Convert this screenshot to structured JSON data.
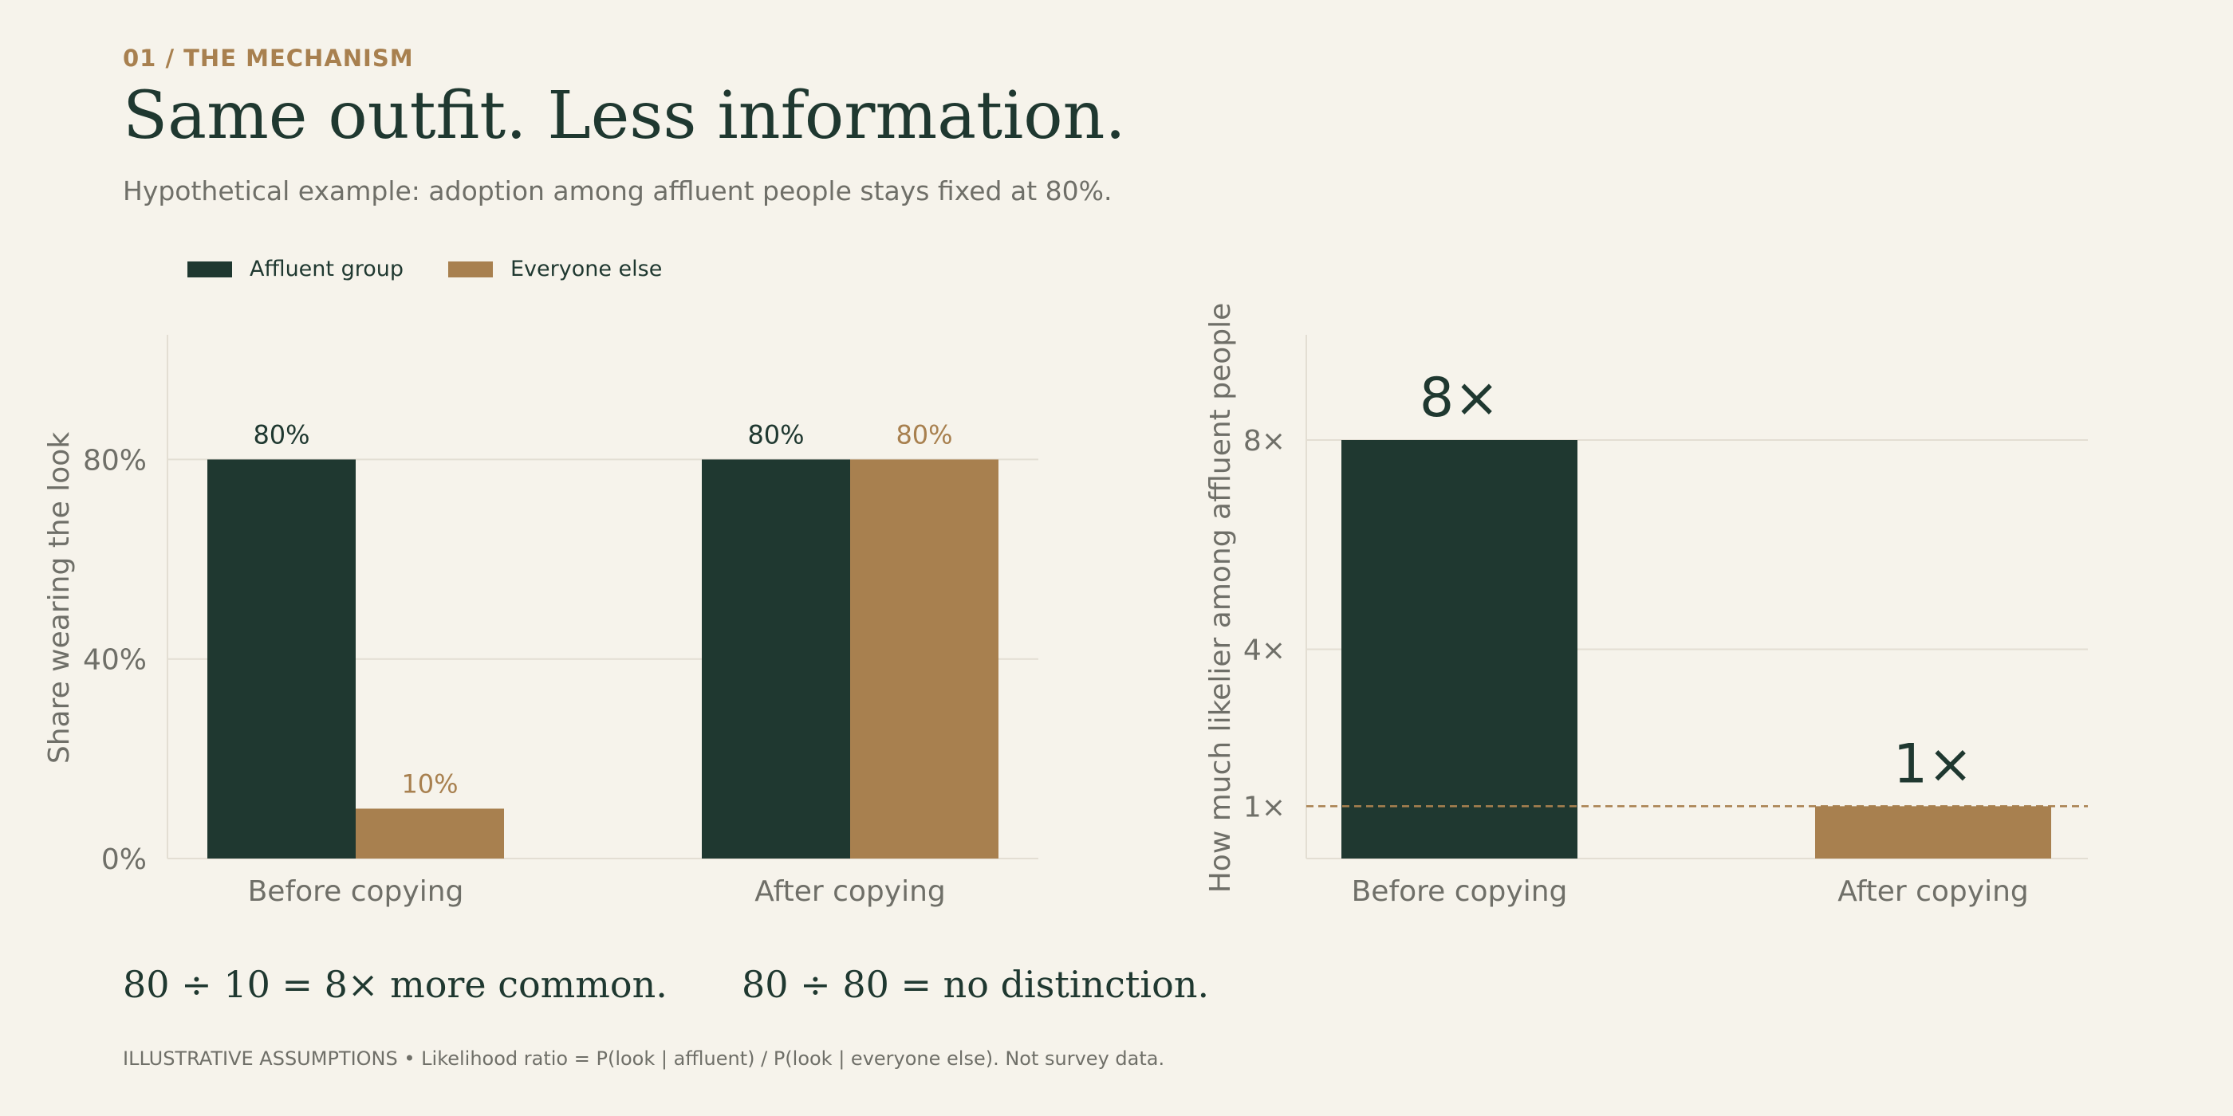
{
  "header": {
    "eyebrow": "01 / THE MECHANISM",
    "title": "Same outfit. Less information.",
    "subtitle": "Hypothetical example: adoption among affluent people stays fixed at 80%."
  },
  "legend": [
    {
      "label": "Affluent group",
      "color": "#1f3830"
    },
    {
      "label": "Everyone else",
      "color": "#a8804f"
    }
  ],
  "colors": {
    "dark": "#1f3830",
    "tan": "#a8804f",
    "grid": "#e3ded3",
    "muted": "#6f6f68"
  },
  "chart_data": [
    {
      "type": "bar",
      "categories": [
        "Before copying",
        "After copying"
      ],
      "series": [
        {
          "name": "Affluent group",
          "values": [
            80,
            80
          ],
          "labels": [
            "80%",
            "80%"
          ]
        },
        {
          "name": "Everyone else",
          "values": [
            10,
            80
          ],
          "labels": [
            "10%",
            "80%"
          ]
        }
      ],
      "ylabel": "Share wearing the look",
      "ylim": [
        0,
        105
      ],
      "yticks": [
        0,
        40,
        80
      ],
      "ytick_labels": [
        "0%",
        "40%",
        "80%"
      ],
      "grid": true
    },
    {
      "type": "bar",
      "categories": [
        "Before copying",
        "After copying"
      ],
      "values": [
        8,
        1
      ],
      "labels": [
        "8×",
        "1×"
      ],
      "ylabel": "How much likelier among affluent people",
      "ylim": [
        0,
        10
      ],
      "yticks": [
        1,
        4,
        8
      ],
      "ytick_labels": [
        "1×",
        "4×",
        "8×"
      ],
      "reference_line": 1,
      "grid": true
    }
  ],
  "formulas": [
    "80 ÷ 10 = 8× more common.",
    "80 ÷ 80 = no distinction."
  ],
  "footnote": "ILLUSTRATIVE ASSUMPTIONS • Likelihood ratio = P(look | affluent) / P(look | everyone else). Not survey data."
}
